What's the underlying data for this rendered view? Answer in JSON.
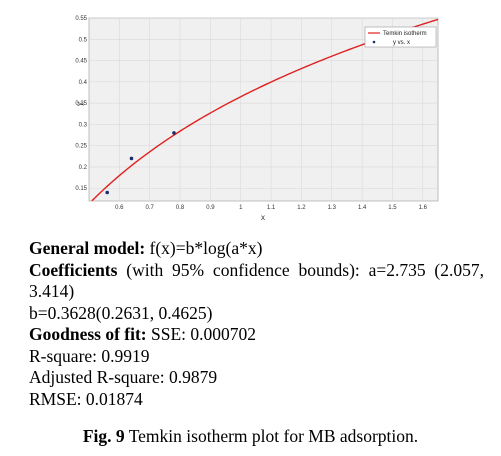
{
  "chart_data": {
    "type": "scatter",
    "title": "",
    "xlabel": "x",
    "ylabel": "y",
    "xlim": [
      0.5,
      1.65
    ],
    "ylim": [
      0.12,
      0.55
    ],
    "xticks": [
      "0.6",
      "0.7",
      "0.8",
      "0.9",
      "1",
      "1.1",
      "1.2",
      "1.3",
      "1.4",
      "1.5",
      "1.6"
    ],
    "yticks": [
      "0.15",
      "0.2",
      "0.25",
      "0.3",
      "0.35",
      "0.4",
      "0.45",
      "0.5",
      "0.55"
    ],
    "grid": true,
    "legend_position": "top-right",
    "series": [
      {
        "name": "Temkin isotherm",
        "kind": "line",
        "model": {
          "a": 2.735,
          "b": 0.3628
        }
      },
      {
        "name": "y vs. x",
        "kind": "points",
        "x": [
          0.56,
          0.64,
          0.78
        ],
        "y": [
          0.14,
          0.22,
          0.28
        ]
      }
    ],
    "colors": {
      "fit": "#e02020",
      "points": "#1f2f6e",
      "grid": "#d6d6d6",
      "background": "#f0f0f0"
    }
  },
  "results": {
    "general_model_label": "General model:",
    "general_model_value": " f(x)=b*log(a*x)",
    "coefficients_label": "Coefficients",
    "coefficients_value": " (with 95% confidence bounds): a=2.735 (2.057, 3.414)",
    "b_line": "b=0.3628(0.2631, 0.4625)",
    "goodness_label": "Goodness of fit:",
    "goodness_value": " SSE: 0.000702",
    "r_square": "R-square: 0.9919",
    "adjusted_r_square": "Adjusted R-square: 0.9879",
    "rmse": "RMSE: 0.01874"
  },
  "caption": {
    "label": "Fig. 9",
    "text": " Temkin isotherm plot for MB adsorption."
  }
}
